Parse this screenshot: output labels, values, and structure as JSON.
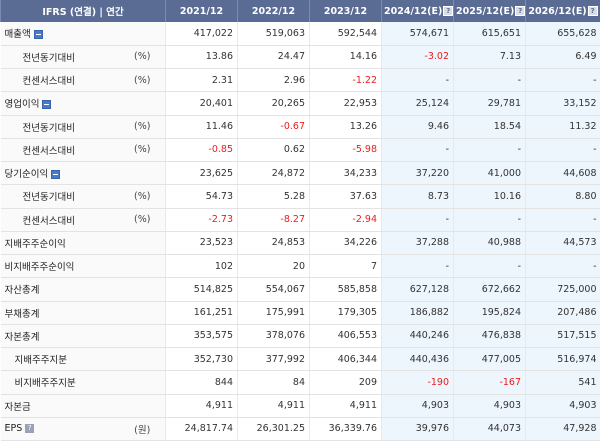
{
  "header": {
    "first": "IFRS (연결) | 연간",
    "years": [
      {
        "label": "2021/12",
        "estimate": false
      },
      {
        "label": "2022/12",
        "estimate": false
      },
      {
        "label": "2023/12",
        "estimate": false
      },
      {
        "label": "2024/12(E)",
        "estimate": true
      },
      {
        "label": "2025/12(E)",
        "estimate": true
      },
      {
        "label": "2026/12(E)",
        "estimate": true
      }
    ],
    "estimate_icon": "help-icon"
  },
  "colors": {
    "header_bg": "#5a6b94",
    "estimate_bg": "#edf5fd",
    "negative": "#ee1c1c",
    "expand_icon": "#4a78c8"
  },
  "rows": [
    {
      "label": "매출액",
      "level": "main",
      "icon": "collapse-icon",
      "unit": "",
      "values": [
        "417,022",
        "519,063",
        "592,544",
        "574,671",
        "615,651",
        "655,628"
      ]
    },
    {
      "label": "전년동기대비",
      "level": "sub",
      "unit": "(%)",
      "values": [
        "13.86",
        "24.47",
        "14.16",
        "-3.02",
        "7.13",
        "6.49"
      ]
    },
    {
      "label": "컨센서스대비",
      "level": "sub",
      "unit": "(%)",
      "values": [
        "2.31",
        "2.96",
        "-1.22",
        "-",
        "-",
        "-"
      ]
    },
    {
      "label": "영업이익",
      "level": "main",
      "icon": "collapse-icon",
      "unit": "",
      "values": [
        "20,401",
        "20,265",
        "22,953",
        "25,124",
        "29,781",
        "33,152"
      ]
    },
    {
      "label": "전년동기대비",
      "level": "sub",
      "unit": "(%)",
      "values": [
        "11.46",
        "-0.67",
        "13.26",
        "9.46",
        "18.54",
        "11.32"
      ]
    },
    {
      "label": "컨센서스대비",
      "level": "sub",
      "unit": "(%)",
      "values": [
        "-0.85",
        "0.62",
        "-5.98",
        "-",
        "-",
        "-"
      ]
    },
    {
      "label": "당기순이익",
      "level": "main",
      "icon": "collapse-icon",
      "unit": "",
      "values": [
        "23,625",
        "24,872",
        "34,233",
        "37,220",
        "41,000",
        "44,608"
      ]
    },
    {
      "label": "전년동기대비",
      "level": "sub",
      "unit": "(%)",
      "values": [
        "54.73",
        "5.28",
        "37.63",
        "8.73",
        "10.16",
        "8.80"
      ]
    },
    {
      "label": "컨센서스대비",
      "level": "sub",
      "unit": "(%)",
      "values": [
        "-2.73",
        "-8.27",
        "-2.94",
        "-",
        "-",
        "-"
      ]
    },
    {
      "label": "지배주주순이익",
      "level": "main",
      "unit": "",
      "values": [
        "23,523",
        "24,853",
        "34,226",
        "37,288",
        "40,988",
        "44,573"
      ]
    },
    {
      "label": "비지배주주순이익",
      "level": "main",
      "unit": "",
      "values": [
        "102",
        "20",
        "7",
        "-",
        "-",
        "-"
      ]
    },
    {
      "label": "자산총계",
      "level": "main",
      "unit": "",
      "values": [
        "514,825",
        "554,067",
        "585,858",
        "627,128",
        "672,662",
        "725,000"
      ]
    },
    {
      "label": "부채총계",
      "level": "main",
      "unit": "",
      "values": [
        "161,251",
        "175,991",
        "179,305",
        "186,882",
        "195,824",
        "207,486"
      ]
    },
    {
      "label": "자본총계",
      "level": "main",
      "unit": "",
      "values": [
        "353,575",
        "378,076",
        "406,553",
        "440,246",
        "476,838",
        "517,515"
      ]
    },
    {
      "label": "지배주주지분",
      "level": "sub2",
      "unit": "",
      "values": [
        "352,730",
        "377,992",
        "406,344",
        "440,436",
        "477,005",
        "516,974"
      ]
    },
    {
      "label": "비지배주주지분",
      "level": "sub2",
      "unit": "",
      "values": [
        "844",
        "84",
        "209",
        "-190",
        "-167",
        "541"
      ]
    },
    {
      "label": "자본금",
      "level": "main",
      "unit": "",
      "values": [
        "4,911",
        "4,911",
        "4,911",
        "4,903",
        "4,903",
        "4,903"
      ]
    },
    {
      "label": "EPS",
      "level": "main",
      "icon": "info-icon",
      "unit": "(원)",
      "values": [
        "24,817.74",
        "26,301.25",
        "36,339.76",
        "39,976",
        "44,073",
        "47,928"
      ]
    }
  ]
}
